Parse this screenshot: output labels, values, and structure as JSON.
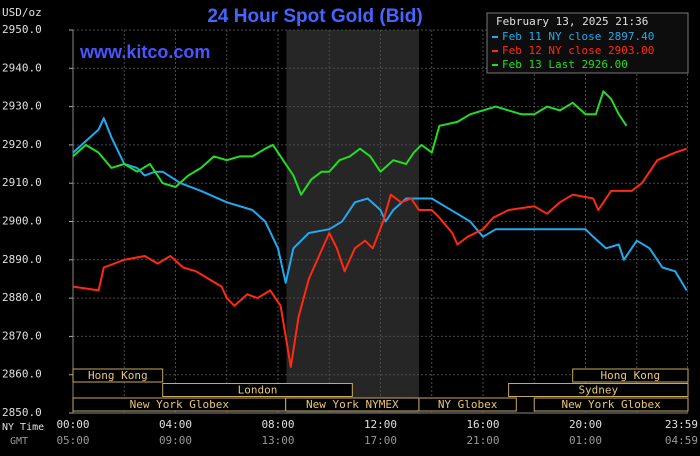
{
  "chart_data": {
    "type": "line",
    "title": "24 Hour Spot Gold (Bid)",
    "y_label": "USD/oz",
    "watermark": "www.kitco.com",
    "timestamp": "February 13, 2025 21:36",
    "x_axis_label": "NY Time",
    "x2_axis_label": "GMT",
    "xlim": [
      0,
      24
    ],
    "xticks": [
      {
        "value": 0,
        "label": "00:00"
      },
      {
        "value": 4,
        "label": "04:00"
      },
      {
        "value": 8,
        "label": "08:00"
      },
      {
        "value": 12,
        "label": "12:00"
      },
      {
        "value": 16,
        "label": "16:00"
      },
      {
        "value": 20,
        "label": "20:00"
      },
      {
        "value": 23.98,
        "label": "23:59"
      }
    ],
    "x2tick_labels": [
      "05:00",
      "09:00",
      "13:00",
      "17:00",
      "21:00",
      "01:00",
      "04:59"
    ],
    "xminorticks": [
      2,
      6,
      10,
      14,
      18,
      22
    ],
    "ylim": [
      2850,
      2950
    ],
    "yticks": [
      {
        "value": 2850,
        "label": "2850.0"
      },
      {
        "value": 2860,
        "label": "2860.0"
      },
      {
        "value": 2870,
        "label": "2870.0"
      },
      {
        "value": 2880,
        "label": "2880.0"
      },
      {
        "value": 2890,
        "label": "2890.0"
      },
      {
        "value": 2900,
        "label": "2900.0"
      },
      {
        "value": 2910,
        "label": "2910.0"
      },
      {
        "value": 2920,
        "label": "2920.0"
      },
      {
        "value": 2930,
        "label": "2930.0"
      },
      {
        "value": 2940,
        "label": "2940.0"
      },
      {
        "value": 2950,
        "label": "2950.0"
      }
    ],
    "grid": true,
    "highlight_range": [
      8.33,
      13.5
    ],
    "sessions": [
      {
        "label": "Hong Kong",
        "row": 0,
        "start": 0,
        "end": 3.5
      },
      {
        "label": "Hong Kong",
        "row": 0,
        "start": 19.5,
        "end": 24
      },
      {
        "label": "London",
        "row": 1,
        "start": 3.5,
        "end": 10.9
      },
      {
        "label": "Sydney",
        "row": 1,
        "start": 17,
        "end": 24
      },
      {
        "label": "New York Globex",
        "row": 2,
        "start": 0,
        "end": 8.3
      },
      {
        "label": "New York NYMEX",
        "row": 2,
        "start": 8.3,
        "end": 13.5
      },
      {
        "label": "NY Globex",
        "row": 2,
        "start": 13.5,
        "end": 17.3
      },
      {
        "label": "New York Globex",
        "row": 2,
        "start": 18,
        "end": 24
      }
    ],
    "series": [
      {
        "name": "Feb 11 NY close 2897.40",
        "color": "#22aaee",
        "x": [
          0,
          0.5,
          1,
          1.2,
          1.5,
          2,
          2.5,
          2.8,
          3.2,
          3.5,
          4.2,
          5,
          6,
          7,
          7.5,
          8,
          8.3,
          8.6,
          9.2,
          10,
          10.5,
          11,
          11.5,
          12,
          12.2,
          12.5,
          13,
          14,
          14.5,
          15,
          15.5,
          16,
          16.5,
          17,
          18,
          19,
          20,
          20.3,
          20.8,
          21.3,
          21.5,
          22,
          22.5,
          23,
          23.5,
          23.95
        ],
        "values": [
          2918,
          2921,
          2924,
          2927,
          2922,
          2915,
          2914,
          2912,
          2913,
          2913,
          2910,
          2908,
          2905,
          2903,
          2900,
          2893,
          2884,
          2893,
          2897,
          2898,
          2900,
          2905,
          2906,
          2903,
          2900,
          2903,
          2906,
          2906,
          2904,
          2902,
          2900,
          2896,
          2898,
          2898,
          2898,
          2898,
          2898,
          2896,
          2893,
          2894,
          2890,
          2895,
          2893,
          2888,
          2887,
          2882
        ]
      },
      {
        "name": "Feb 12 NY close 2903.00",
        "color": "#ff2a10",
        "x": [
          0,
          1,
          1.2,
          2,
          2.8,
          3.3,
          3.8,
          4.3,
          4.8,
          5.3,
          5.8,
          6,
          6.3,
          6.8,
          7.2,
          7.7,
          8.1,
          8.3,
          8.5,
          8.8,
          9.2,
          9.6,
          10,
          10.3,
          10.6,
          11,
          11.4,
          11.7,
          12.1,
          12.4,
          12.8,
          13.2,
          13.5,
          14,
          14.3,
          14.8,
          15,
          15.4,
          16,
          16.4,
          17,
          18,
          18.5,
          19,
          19.5,
          20.3,
          20.5,
          21,
          21.8,
          22.2,
          22.8,
          23.5,
          23.95
        ],
        "values": [
          2883,
          2882,
          2888,
          2890,
          2891,
          2889,
          2891,
          2888,
          2887,
          2885,
          2883,
          2880,
          2878,
          2881,
          2880,
          2882,
          2878,
          2870,
          2862,
          2875,
          2885,
          2891,
          2897,
          2893,
          2887,
          2893,
          2895,
          2893,
          2900,
          2907,
          2905,
          2906,
          2903,
          2903,
          2901,
          2897,
          2894,
          2896,
          2898,
          2901,
          2903,
          2904,
          2902,
          2905,
          2907,
          2906,
          2903,
          2908,
          2908,
          2910,
          2916,
          2918,
          2919
        ]
      },
      {
        "name": "Feb 13 Last 2926.00",
        "color": "#22dd22",
        "x": [
          0,
          0.5,
          1,
          1.5,
          2,
          2.5,
          3,
          3.5,
          4,
          4.5,
          5,
          5.5,
          6,
          6.5,
          7,
          7.5,
          7.8,
          8.2,
          8.6,
          8.9,
          9.3,
          9.7,
          10,
          10.4,
          10.8,
          11.2,
          11.6,
          12,
          12.5,
          13,
          13.3,
          13.6,
          14,
          14.3,
          15,
          15.5,
          16,
          16.5,
          17,
          17.5,
          18,
          18.5,
          19,
          19.5,
          20,
          20.4,
          20.7,
          21,
          21.3,
          21.6
        ],
        "values": [
          2917,
          2920,
          2918,
          2914,
          2915,
          2913,
          2915,
          2910,
          2909,
          2912,
          2914,
          2917,
          2916,
          2917,
          2917,
          2919,
          2920,
          2916,
          2912,
          2907,
          2911,
          2913,
          2913,
          2916,
          2917,
          2919,
          2917,
          2913,
          2916,
          2915,
          2918,
          2920,
          2918,
          2925,
          2926,
          2928,
          2929,
          2930,
          2929,
          2928,
          2928,
          2930,
          2929,
          2931,
          2928,
          2928,
          2934,
          2932,
          2928,
          2925
        ]
      }
    ]
  }
}
